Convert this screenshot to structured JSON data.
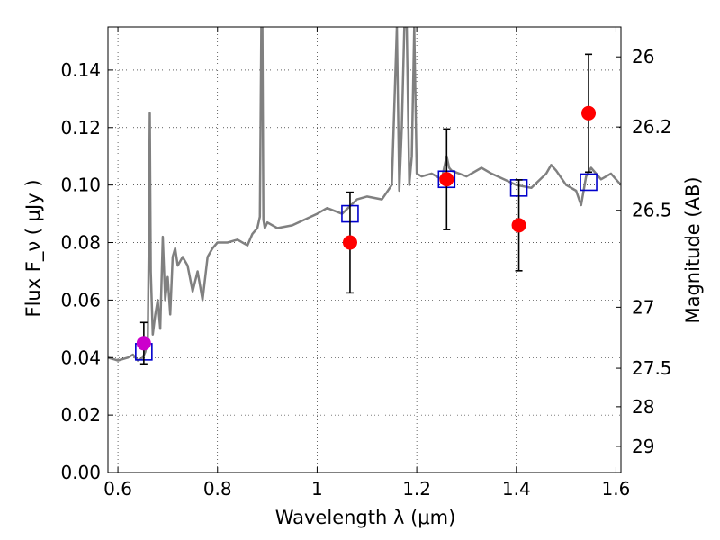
{
  "chart_data": {
    "type": "line",
    "xlabel": "Wavelength  λ (μm)",
    "ylabel": "Flux  F_ν  ( μJy )",
    "ylabel_right": "Magnitude (AB)",
    "xlim": [
      0.58,
      1.61
    ],
    "ylim": [
      0.0,
      0.155
    ],
    "grid": true,
    "x_ticks": [
      0.6,
      0.8,
      1.0,
      1.2,
      1.4,
      1.6
    ],
    "x_tick_labels": [
      "0.6",
      "0.8",
      "1",
      "1.2",
      "1.4",
      "1.6"
    ],
    "y_ticks": [
      0.0,
      0.02,
      0.04,
      0.06,
      0.08,
      0.1,
      0.12,
      0.14
    ],
    "y_tick_labels": [
      "0.00",
      "0.02",
      "0.04",
      "0.06",
      "0.08",
      "0.10",
      "0.12",
      "0.14"
    ],
    "mag_ticks": [
      {
        "label": "26",
        "flux": 0.1446
      },
      {
        "label": "26.2",
        "flux": 0.1202
      },
      {
        "label": "26.5",
        "flux": 0.0912
      },
      {
        "label": "27",
        "flux": 0.0575
      },
      {
        "label": "27.5",
        "flux": 0.0363
      },
      {
        "label": "28",
        "flux": 0.0229
      },
      {
        "label": "29",
        "flux": 0.0091
      }
    ],
    "colors": {
      "template": "#808080",
      "observed": "#ff0000",
      "model": "#0000cc",
      "optical": "#cc00cc",
      "errorbar": "#000000"
    },
    "series": [
      {
        "name": "SED template",
        "style": "line",
        "x": [
          0.58,
          0.6,
          0.62,
          0.63,
          0.64,
          0.65,
          0.655,
          0.66,
          0.662,
          0.664,
          0.666,
          0.67,
          0.675,
          0.68,
          0.685,
          0.69,
          0.695,
          0.7,
          0.705,
          0.71,
          0.715,
          0.72,
          0.73,
          0.74,
          0.75,
          0.76,
          0.77,
          0.78,
          0.79,
          0.8,
          0.82,
          0.84,
          0.86,
          0.87,
          0.88,
          0.885,
          0.888,
          0.89,
          0.892,
          0.895,
          0.9,
          0.92,
          0.95,
          1.0,
          1.02,
          1.05,
          1.08,
          1.1,
          1.13,
          1.15,
          1.16,
          1.165,
          1.17,
          1.175,
          1.18,
          1.185,
          1.19,
          1.195,
          1.2,
          1.21,
          1.23,
          1.25,
          1.26,
          1.265,
          1.27,
          1.3,
          1.33,
          1.35,
          1.4,
          1.43,
          1.46,
          1.47,
          1.48,
          1.5,
          1.52,
          1.53,
          1.54,
          1.55,
          1.57,
          1.59,
          1.61
        ],
        "y": [
          0.04,
          0.039,
          0.04,
          0.041,
          0.039,
          0.04,
          0.042,
          0.047,
          0.08,
          0.125,
          0.07,
          0.048,
          0.055,
          0.06,
          0.05,
          0.082,
          0.06,
          0.068,
          0.055,
          0.075,
          0.078,
          0.072,
          0.075,
          0.072,
          0.063,
          0.07,
          0.06,
          0.075,
          0.078,
          0.08,
          0.08,
          0.081,
          0.079,
          0.083,
          0.085,
          0.089,
          0.155,
          0.155,
          0.088,
          0.085,
          0.087,
          0.085,
          0.086,
          0.09,
          0.092,
          0.09,
          0.095,
          0.096,
          0.095,
          0.1,
          0.155,
          0.098,
          0.12,
          0.155,
          0.155,
          0.1,
          0.11,
          0.155,
          0.104,
          0.103,
          0.104,
          0.102,
          0.11,
          0.106,
          0.105,
          0.103,
          0.106,
          0.104,
          0.1,
          0.099,
          0.104,
          0.107,
          0.105,
          0.1,
          0.098,
          0.093,
          0.103,
          0.106,
          0.102,
          0.104,
          0.1
        ]
      },
      {
        "name": "Model fluxes",
        "style": "square",
        "x": [
          0.652,
          1.066,
          1.26,
          1.405,
          1.545
        ],
        "y": [
          0.042,
          0.09,
          0.102,
          0.099,
          0.101
        ]
      },
      {
        "name": "Observed fluxes",
        "style": "circle",
        "x": [
          1.066,
          1.26,
          1.405,
          1.545
        ],
        "y": [
          0.08,
          0.102,
          0.086,
          0.125
        ],
        "yerr": [
          0.0175,
          0.0175,
          0.0158,
          0.0205
        ]
      },
      {
        "name": "Optical flux",
        "style": "circle",
        "x": [
          0.652
        ],
        "y": [
          0.045
        ],
        "yerr": [
          0.0072
        ]
      }
    ]
  }
}
